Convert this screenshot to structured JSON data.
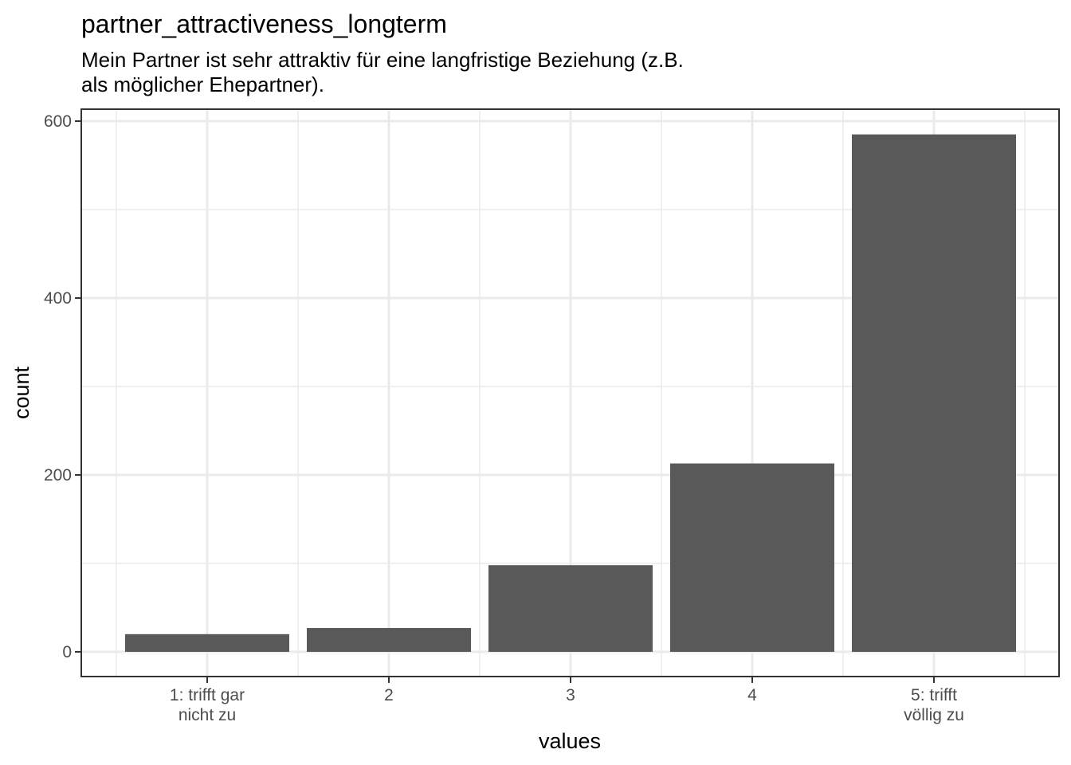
{
  "chart_data": {
    "type": "bar",
    "title": "partner_attractiveness_longterm",
    "subtitle_lines": [
      "Mein Partner ist sehr attraktiv für eine langfristige Beziehung (z.B.",
      "als möglicher Ehepartner)."
    ],
    "xlabel": "values",
    "ylabel": "count",
    "categories": [
      [
        "1: trifft gar",
        "nicht zu"
      ],
      [
        "2"
      ],
      [
        "3"
      ],
      [
        "4"
      ],
      [
        "5: trifft",
        "völlig zu"
      ]
    ],
    "values": [
      20,
      27,
      98,
      213,
      585
    ],
    "ylim": [
      -28,
      613
    ],
    "yticks": [
      0,
      200,
      400,
      600
    ],
    "ytick_labels": [
      "0",
      "200",
      "400",
      "600"
    ],
    "grid": true,
    "bar_color": "#595959",
    "grid_color": "#ebebeb",
    "panel_border_color": "#333333"
  }
}
